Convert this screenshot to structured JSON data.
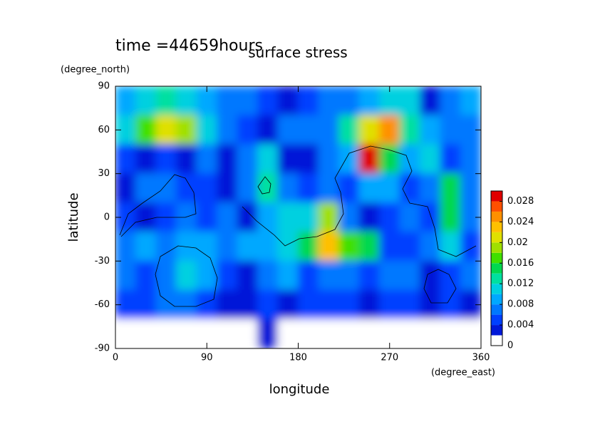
{
  "chart_data": {
    "type": "heatmap",
    "header": "time =44659hours",
    "title": "surface stress",
    "x_label": "longitude",
    "x_units": "(degree_east)",
    "y_label": "latitude",
    "y_units": "(degree_north)",
    "x": [
      10,
      30,
      50,
      70,
      90,
      110,
      130,
      150,
      170,
      190,
      210,
      230,
      250,
      270,
      290,
      310,
      330,
      350
    ],
    "y": [
      80,
      60,
      40,
      20,
      0,
      -20,
      -40,
      -60,
      -80
    ],
    "values": [
      [
        0.008,
        0.01,
        0.012,
        0.01,
        0.008,
        0.006,
        0.006,
        0.004,
        0.002,
        0.004,
        0.006,
        0.006,
        0.008,
        0.01,
        0.01,
        0.002,
        0.006,
        0.008
      ],
      [
        0.01,
        0.016,
        0.02,
        0.018,
        0.01,
        0.006,
        0.004,
        0.002,
        0.006,
        0.006,
        0.006,
        0.012,
        0.02,
        0.024,
        0.012,
        0.008,
        0.006,
        0.006
      ],
      [
        0.004,
        0.002,
        0.004,
        0.002,
        0.006,
        0.002,
        0.006,
        0.01,
        0.002,
        0.002,
        0.006,
        0.008,
        0.028,
        0.014,
        0.008,
        0.01,
        0.004,
        0.006
      ],
      [
        0.002,
        0.006,
        0.006,
        0.004,
        0.004,
        0.002,
        0.006,
        0.012,
        0.006,
        0.004,
        0.006,
        0.004,
        0.008,
        0.008,
        0.004,
        0.006,
        0.014,
        0.006
      ],
      [
        0.004,
        0.002,
        0.004,
        0.006,
        0.004,
        0.006,
        0.002,
        0.008,
        0.01,
        0.01,
        0.018,
        0.006,
        0.002,
        0.004,
        0.006,
        0.004,
        0.014,
        0.006
      ],
      [
        0.006,
        0.008,
        0.006,
        0.008,
        0.008,
        0.006,
        0.008,
        0.008,
        0.01,
        0.014,
        0.022,
        0.016,
        0.014,
        0.004,
        0.004,
        0.006,
        0.01,
        0.004
      ],
      [
        0.006,
        0.004,
        0.006,
        0.01,
        0.008,
        0.004,
        0.002,
        0.006,
        0.008,
        0.004,
        0.006,
        0.006,
        0.004,
        0.006,
        0.006,
        0.002,
        0.004,
        0.006
      ],
      [
        0.004,
        0.004,
        0.006,
        0.006,
        0.004,
        0.002,
        0.002,
        0.004,
        0.002,
        0.004,
        0.004,
        0.004,
        0.002,
        0.004,
        0.004,
        0.002,
        0.004,
        0.002
      ],
      [
        0,
        0,
        0,
        0,
        0,
        0,
        0,
        0.002,
        0,
        0,
        0,
        0,
        0,
        0,
        0,
        0,
        0,
        0
      ]
    ],
    "xlim": [
      0,
      360
    ],
    "xticks": [
      0,
      90,
      180,
      270,
      360
    ],
    "ylim": [
      -90,
      90
    ],
    "yticks": [
      -90,
      -60,
      -30,
      0,
      30,
      60,
      90
    ],
    "clim": [
      0,
      0.03
    ],
    "cticks": [
      0,
      0.004,
      0.008,
      0.012,
      0.016,
      0.02,
      0.024,
      0.028
    ],
    "colors": [
      "#ffffff",
      "#0018d8",
      "#0040ff",
      "#0078ff",
      "#00a8ff",
      "#00d0e0",
      "#00e0a0",
      "#00d850",
      "#40e000",
      "#a0e000",
      "#e0e000",
      "#ffc000",
      "#ff9000",
      "#ff5000",
      "#e00000"
    ]
  }
}
